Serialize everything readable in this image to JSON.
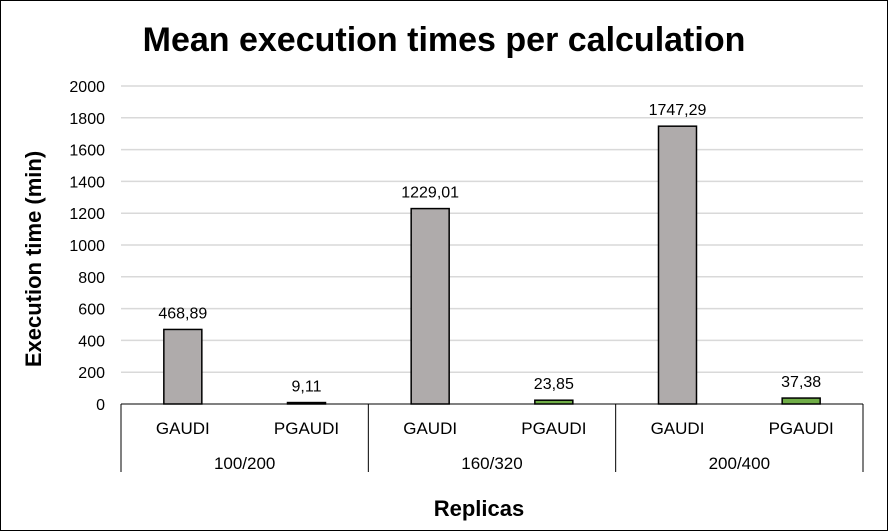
{
  "chart_data": {
    "type": "bar",
    "title": "Mean execution times per calculation",
    "xlabel": "Replicas",
    "ylabel": "Execution time (min)",
    "ylim": [
      0,
      2000
    ],
    "yticks": [
      0,
      200,
      400,
      600,
      800,
      1000,
      1200,
      1400,
      1600,
      1800,
      2000
    ],
    "grid": true,
    "legend": "none",
    "groups": [
      {
        "label": "100/200",
        "bars": [
          {
            "category": "GAUDI",
            "value": 468.89,
            "value_label": "468,89",
            "color": "#afabab"
          },
          {
            "category": "PGAUDI",
            "value": 9.11,
            "value_label": "9,11",
            "color": "#70ad47"
          }
        ]
      },
      {
        "label": "160/320",
        "bars": [
          {
            "category": "GAUDI",
            "value": 1229.01,
            "value_label": "1229,01",
            "color": "#afabab"
          },
          {
            "category": "PGAUDI",
            "value": 23.85,
            "value_label": "23,85",
            "color": "#70ad47"
          }
        ]
      },
      {
        "label": "200/400",
        "bars": [
          {
            "category": "GAUDI",
            "value": 1747.29,
            "value_label": "1747,29",
            "color": "#afabab"
          },
          {
            "category": "PGAUDI",
            "value": 37.38,
            "value_label": "37,38",
            "color": "#70ad47"
          }
        ]
      }
    ]
  }
}
